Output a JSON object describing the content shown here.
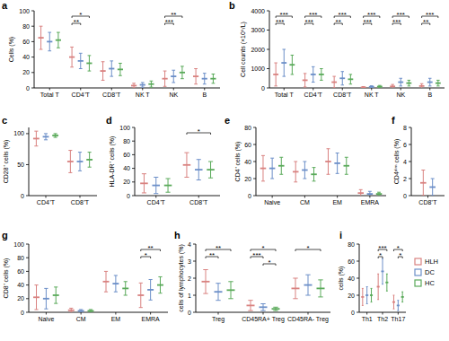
{
  "chart_data": [
    {
      "type": "dotplot",
      "title": "a",
      "y_label": "Cells (%)",
      "categories": [
        "Total T",
        "CD4⁺T",
        "CD8⁺T",
        "NK T",
        "NK",
        "B"
      ],
      "ylim": [
        0,
        100
      ],
      "yticks": [
        0,
        20,
        40,
        60,
        80,
        100
      ],
      "series": [
        {
          "color": "#d98280",
          "values": [
            65,
            40,
            22,
            3,
            12,
            15
          ],
          "errors": [
            15,
            13,
            12,
            3,
            10,
            10
          ]
        },
        {
          "color": "#6c8fc8",
          "values": [
            60,
            35,
            25,
            4,
            15,
            12
          ],
          "errors": [
            12,
            10,
            10,
            3,
            8,
            7
          ]
        },
        {
          "color": "#5aaa5a",
          "values": [
            62,
            32,
            24,
            5,
            20,
            12
          ],
          "errors": [
            10,
            10,
            8,
            4,
            8,
            6
          ]
        }
      ],
      "significance": [
        {
          "category": 1,
          "pair": [
            0,
            2
          ],
          "label": "*"
        },
        {
          "category": 1,
          "pair": [
            0,
            1
          ],
          "label": "**"
        },
        {
          "category": 4,
          "pair": [
            0,
            2
          ],
          "label": "**"
        },
        {
          "category": 4,
          "pair": [
            0,
            1
          ],
          "label": "***"
        }
      ]
    },
    {
      "type": "dotplot",
      "title": "b",
      "y_label": "Cell counts (×10⁶/L)",
      "categories": [
        "Total T",
        "CD4⁺T",
        "CD8⁺T",
        "NK T",
        "NK",
        "B"
      ],
      "ylim": [
        0,
        4000
      ],
      "yticks": [
        0,
        1000,
        2000,
        3000,
        4000
      ],
      "series": [
        {
          "color": "#d98280",
          "values": [
            700,
            400,
            300,
            30,
            80,
            100
          ],
          "errors": [
            600,
            350,
            300,
            40,
            100,
            120
          ]
        },
        {
          "color": "#6c8fc8",
          "values": [
            1300,
            700,
            500,
            60,
            300,
            300
          ],
          "errors": [
            700,
            400,
            350,
            50,
            200,
            200
          ]
        },
        {
          "color": "#5aaa5a",
          "values": [
            1200,
            700,
            450,
            70,
            250,
            250
          ],
          "errors": [
            500,
            300,
            250,
            60,
            150,
            150
          ]
        }
      ],
      "significance": [
        {
          "category": 0,
          "pair": [
            0,
            2
          ],
          "label": "***"
        },
        {
          "category": 0,
          "pair": [
            0,
            1
          ],
          "label": "***"
        },
        {
          "category": 1,
          "pair": [
            0,
            2
          ],
          "label": "***"
        },
        {
          "category": 1,
          "pair": [
            0,
            1
          ],
          "label": "***"
        },
        {
          "category": 2,
          "pair": [
            0,
            2
          ],
          "label": "***"
        },
        {
          "category": 2,
          "pair": [
            0,
            1
          ],
          "label": "**"
        },
        {
          "category": 3,
          "pair": [
            0,
            2
          ],
          "label": "***"
        },
        {
          "category": 3,
          "pair": [
            0,
            1
          ],
          "label": "***"
        },
        {
          "category": 4,
          "pair": [
            0,
            2
          ],
          "label": "***"
        },
        {
          "category": 4,
          "pair": [
            0,
            1
          ],
          "label": "***"
        },
        {
          "category": 5,
          "pair": [
            0,
            2
          ],
          "label": "***"
        },
        {
          "category": 5,
          "pair": [
            0,
            1
          ],
          "label": "**"
        }
      ]
    },
    {
      "type": "dotplot",
      "title": "c",
      "y_label": "CD28⁺ cells (%)",
      "categories": [
        "CD4⁺T",
        "CD8⁺T"
      ],
      "ylim": [
        0,
        110
      ],
      "yticks": [
        0,
        50,
        100
      ],
      "series": [
        {
          "color": "#d98280",
          "values": [
            92,
            55
          ],
          "errors": [
            12,
            18
          ]
        },
        {
          "color": "#6c8fc8",
          "values": [
            95,
            55
          ],
          "errors": [
            5,
            15
          ]
        },
        {
          "color": "#5aaa5a",
          "values": [
            97,
            58
          ],
          "errors": [
            3,
            12
          ]
        }
      ]
    },
    {
      "type": "dotplot",
      "title": "d",
      "y_label": "HLA-DR⁺ cells (%)",
      "categories": [
        "CD4⁺T",
        "CD8⁺T"
      ],
      "ylim": [
        0,
        100
      ],
      "yticks": [
        0,
        20,
        40,
        60,
        80,
        100
      ],
      "series": [
        {
          "color": "#d98280",
          "values": [
            18,
            45
          ],
          "errors": [
            14,
            18
          ]
        },
        {
          "color": "#6c8fc8",
          "values": [
            15,
            38
          ],
          "errors": [
            12,
            15
          ]
        },
        {
          "color": "#5aaa5a",
          "values": [
            15,
            38
          ],
          "errors": [
            10,
            12
          ]
        }
      ],
      "significance": [
        {
          "category": 1,
          "pair": [
            0,
            2
          ],
          "label": "*"
        }
      ]
    },
    {
      "type": "dotplot",
      "title": "e",
      "y_label": "CD4⁺ cells (%)",
      "categories": [
        "Naive",
        "CM",
        "EM",
        "EMRA"
      ],
      "ylim": [
        0,
        80
      ],
      "yticks": [
        0,
        20,
        40,
        60,
        80
      ],
      "series": [
        {
          "color": "#d98280",
          "values": [
            32,
            28,
            40,
            3
          ],
          "errors": [
            15,
            12,
            15,
            4
          ]
        },
        {
          "color": "#6c8fc8",
          "values": [
            32,
            30,
            38,
            2
          ],
          "errors": [
            12,
            10,
            12,
            3
          ]
        },
        {
          "color": "#5aaa5a",
          "values": [
            35,
            25,
            35,
            2
          ],
          "errors": [
            10,
            8,
            10,
            2
          ]
        }
      ]
    },
    {
      "type": "dotplot",
      "title": "f",
      "y_label": "CD4ᵈⁱᵐ cells (%)",
      "categories": [
        "CD8⁺T"
      ],
      "ylim": [
        0,
        8
      ],
      "yticks": [
        0,
        2,
        4,
        6,
        8
      ],
      "series": [
        {
          "color": "#d98280",
          "values": [
            1.5
          ],
          "errors": [
            1.5
          ]
        },
        {
          "color": "#6c8fc8",
          "values": [
            1.0
          ],
          "errors": [
            1.0
          ]
        }
      ]
    },
    {
      "type": "dotplot",
      "title": "g",
      "y_label": "CD8⁺ cells (%)",
      "categories": [
        "Naive",
        "CM",
        "EM",
        "EMRA"
      ],
      "ylim": [
        0,
        100
      ],
      "yticks": [
        0,
        20,
        40,
        60,
        80,
        100
      ],
      "series": [
        {
          "color": "#d98280",
          "values": [
            22,
            3,
            45,
            25
          ],
          "errors": [
            18,
            3,
            15,
            18
          ]
        },
        {
          "color": "#6c8fc8",
          "values": [
            20,
            2,
            42,
            33
          ],
          "errors": [
            15,
            2,
            12,
            15
          ]
        },
        {
          "color": "#5aaa5a",
          "values": [
            25,
            2,
            35,
            40
          ],
          "errors": [
            12,
            2,
            10,
            12
          ]
        }
      ],
      "significance": [
        {
          "category": 3,
          "pair": [
            0,
            2
          ],
          "label": "**"
        },
        {
          "category": 3,
          "pair": [
            0,
            1
          ],
          "label": "*"
        }
      ]
    },
    {
      "type": "dotplot",
      "title": "h",
      "y_label": "cells of lymphocytes (%)",
      "categories": [
        "Treg",
        "CD45RA+ Treg",
        "CD45RA- Treg"
      ],
      "ylim": [
        0,
        4
      ],
      "yticks": [
        0,
        1,
        2,
        3,
        4
      ],
      "series": [
        {
          "color": "#d98280",
          "values": [
            1.8,
            0.4,
            1.4
          ],
          "errors": [
            0.7,
            0.3,
            0.6
          ]
        },
        {
          "color": "#6c8fc8",
          "values": [
            1.2,
            0.3,
            1.6
          ],
          "errors": [
            0.5,
            0.2,
            0.6
          ]
        },
        {
          "color": "#5aaa5a",
          "values": [
            1.3,
            0.2,
            1.4
          ],
          "errors": [
            0.5,
            0.1,
            0.5
          ]
        }
      ],
      "significance": [
        {
          "category": 0,
          "pair": [
            0,
            2
          ],
          "label": "**"
        },
        {
          "category": 0,
          "pair": [
            0,
            1
          ],
          "label": "**"
        },
        {
          "category": 1,
          "pair": [
            0,
            2
          ],
          "label": "*"
        },
        {
          "category": 1,
          "pair": [
            0,
            1
          ],
          "label": "***"
        },
        {
          "category": 1,
          "pair": [
            1,
            2
          ],
          "label": "*"
        },
        {
          "category": 2,
          "pair": [
            0,
            2
          ],
          "label": "*"
        }
      ]
    },
    {
      "type": "dotplot",
      "title": "i",
      "y_label": "cells (%)",
      "categories": [
        "Th1",
        "Th2",
        "Th17"
      ],
      "ylim": [
        0,
        80
      ],
      "yticks": [
        0,
        20,
        40,
        60,
        80
      ],
      "legend": "right",
      "series": [
        {
          "name": "HLH",
          "color": "#d98280",
          "values": [
            18,
            30,
            12
          ],
          "errors": [
            10,
            15,
            8
          ]
        },
        {
          "name": "DC",
          "color": "#6c8fc8",
          "values": [
            20,
            48,
            8
          ],
          "errors": [
            10,
            15,
            6
          ]
        },
        {
          "name": "HC",
          "color": "#5aaa5a",
          "values": [
            20,
            35,
            18
          ],
          "errors": [
            8,
            10,
            6
          ]
        }
      ],
      "significance": [
        {
          "category": 1,
          "pair": [
            0,
            2
          ],
          "label": "***"
        },
        {
          "category": 1,
          "pair": [
            0,
            1
          ],
          "label": "*"
        },
        {
          "category": 2,
          "pair": [
            0,
            2
          ],
          "label": "*"
        },
        {
          "category": 2,
          "pair": [
            1,
            2
          ],
          "label": "*"
        }
      ]
    }
  ]
}
